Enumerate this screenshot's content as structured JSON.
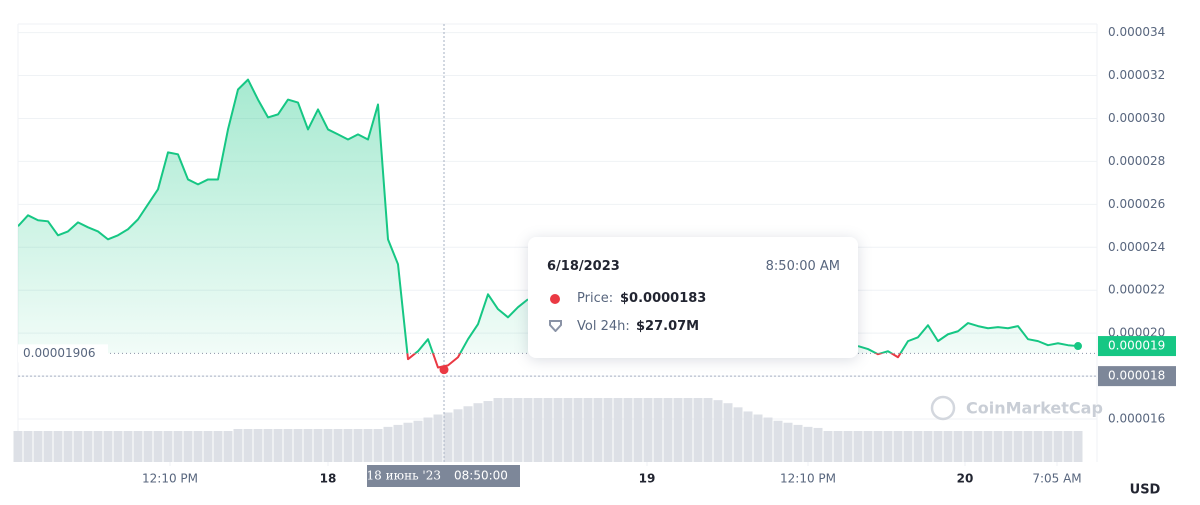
{
  "chart_data": {
    "type": "line",
    "values": [
      2.498e-05,
      2.549e-05,
      2.526e-05,
      2.521e-05,
      2.456e-05,
      2.474e-05,
      2.516e-05,
      2.493e-05,
      2.474e-05,
      2.437e-05,
      2.456e-05,
      2.484e-05,
      2.53e-05,
      2.6e-05,
      2.67e-05,
      2.842e-05,
      2.833e-05,
      2.716e-05,
      2.693e-05,
      2.716e-05,
      2.716e-05,
      2.949e-05,
      3.135e-05,
      3.181e-05,
      3.088e-05,
      3.005e-05,
      3.019e-05,
      3.088e-05,
      3.074e-05,
      2.949e-05,
      3.042e-05,
      2.949e-05,
      2.926e-05,
      2.902e-05,
      2.926e-05,
      2.902e-05,
      3.065e-05,
      2.437e-05,
      2.321e-05,
      1.879e-05,
      1.916e-05,
      1.972e-05,
      1.84e-05,
      1.85e-05,
      1.888e-05,
      1.972e-05,
      2.042e-05,
      2.181e-05,
      2.112e-05,
      2.074e-05,
      2.121e-05,
      2.158e-05,
      null,
      null,
      null,
      null,
      null,
      null,
      null,
      null,
      null,
      null,
      null,
      null,
      null,
      null,
      null,
      null,
      null,
      null,
      null,
      null,
      null,
      null,
      null,
      null,
      null,
      null,
      null,
      null,
      null,
      null,
      null,
      null,
      1.94e-05,
      1.926e-05,
      1.902e-05,
      1.916e-05,
      1.888e-05,
      1.963e-05,
      1.981e-05,
      2.037e-05,
      1.963e-05,
      1.995e-05,
      2.009e-05,
      2.047e-05,
      2.033e-05,
      2.023e-05,
      2.028e-05,
      2.023e-05,
      2.033e-05,
      1.972e-05,
      1.963e-05,
      1.944e-05,
      1.953e-05,
      1.944e-05,
      1.94e-05
    ],
    "volume": [
      17300000,
      17300000,
      17300000,
      17300000,
      17300000,
      17300000,
      17300000,
      17300000,
      17300000,
      17300000,
      17300000,
      17300000,
      17300000,
      17300000,
      17300000,
      17300000,
      17300000,
      17300000,
      17300000,
      17300000,
      17300000,
      17300000,
      18400000,
      18400000,
      18400000,
      18400000,
      18400000,
      18400000,
      18400000,
      18400000,
      18400000,
      18400000,
      18400000,
      18400000,
      18400000,
      18400000,
      18400000,
      19600000,
      20700000,
      21900000,
      23000000,
      24800000,
      26500000,
      27600000,
      29400000,
      31100000,
      32800000,
      34000000,
      35700000,
      35700000,
      35700000,
      35700000,
      35700000,
      35700000,
      35700000,
      35700000,
      35700000,
      35700000,
      35700000,
      35700000,
      35700000,
      35700000,
      35700000,
      35700000,
      35700000,
      35700000,
      35700000,
      35700000,
      35700000,
      35700000,
      34500000,
      32800000,
      30500000,
      28200000,
      26500000,
      24800000,
      23000000,
      21900000,
      20700000,
      19600000,
      19000000,
      17300000,
      17300000,
      17300000,
      17300000,
      17300000,
      17300000,
      17300000,
      17300000,
      17300000,
      17300000,
      17300000,
      17300000,
      17300000,
      17300000,
      17300000,
      17300000,
      17300000,
      17300000,
      17300000,
      17300000,
      17300000,
      17300000,
      17300000,
      17300000,
      17300000,
      17300000
    ],
    "up_color": "#16c784",
    "down_color": "#ea3943",
    "volume_color": "#dde0e6",
    "xlim": [
      0,
      107.9
    ],
    "xticks": [
      {
        "value": 15.2,
        "label": "12:10 PM"
      },
      {
        "value": 31,
        "label": "18"
      },
      {
        "value": 62.9,
        "label": "19"
      },
      {
        "value": 79,
        "label": "12:10 PM"
      },
      {
        "value": 94.7,
        "label": "20"
      },
      {
        "value": 103.9,
        "label": "7:05 AM"
      }
    ],
    "ylim": [
      1.4e-05,
      3.44e-05
    ],
    "yticks": [
      1.6e-05,
      1.8e-05,
      {
        "value": 2e-05,
        "label": "0.000020"
      },
      2.2e-05,
      2.4e-05,
      2.6e-05,
      2.8e-05,
      {
        "value": 3e-05,
        "label": "0.000030"
      },
      3.2e-05,
      3.4e-05
    ],
    "grid": true,
    "currency": "USD",
    "reference_price": 1.906e-05,
    "last_price_label": "0.000019",
    "watermark": "CoinMarketCap",
    "crosshair": {
      "x": 42.6,
      "y": 1.8e-05,
      "y_label": "0.000018",
      "price": 1.83e-05,
      "date_label": "18 июнь '23",
      "time_label": "08:50:00"
    },
    "tooltip": {
      "date": "6/18/2023",
      "time": "8:50:00 AM",
      "price_label": "Price:",
      "price": "$0.0000183",
      "volume_label": "Vol 24h:",
      "volume": "$27.07M"
    }
  }
}
